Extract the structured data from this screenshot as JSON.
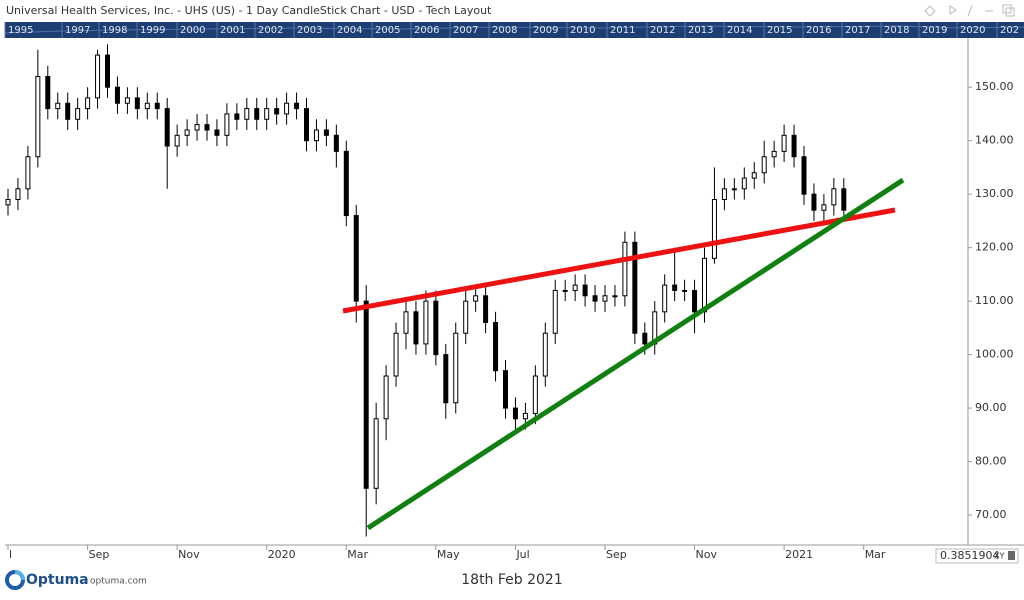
{
  "header": {
    "title": "Universal Health Services, Inc.  - UHS (US) - 1 Day CandleStick Chart - USD - Tech Layout"
  },
  "navigator": {
    "years": [
      "1995",
      "1997",
      "1998",
      "1999",
      "2000",
      "2001",
      "2002",
      "2003",
      "2004",
      "2005",
      "2006",
      "2007",
      "2008",
      "2009",
      "2010",
      "2011",
      "2012",
      "2013",
      "2014",
      "2015",
      "2016",
      "2017",
      "2018",
      "2019",
      "2020",
      "202"
    ]
  },
  "toolbar": {
    "cursor_value": "0.3851904",
    "xy": "XY"
  },
  "footer": {
    "brand": "Optuma",
    "site": "optuma.com",
    "date": "18th Feb 2021"
  },
  "chart_data": {
    "type": "candlestick",
    "color": "#000000",
    "categories": [
      "l",
      null,
      null,
      null,
      null,
      null,
      null,
      null,
      "Sep",
      null,
      null,
      null,
      null,
      null,
      null,
      null,
      null,
      "Nov",
      null,
      null,
      null,
      null,
      null,
      null,
      null,
      null,
      "2020",
      null,
      null,
      null,
      null,
      null,
      null,
      null,
      "Mar",
      null,
      null,
      null,
      null,
      null,
      null,
      null,
      null,
      "May",
      null,
      null,
      null,
      null,
      null,
      null,
      null,
      "Jul",
      null,
      null,
      null,
      null,
      null,
      null,
      null,
      null,
      "Sep",
      null,
      null,
      null,
      null,
      null,
      null,
      null,
      null,
      "Nov",
      null,
      null,
      null,
      null,
      null,
      null,
      null,
      null,
      "2021",
      null,
      null,
      null,
      null,
      null,
      null,
      null,
      "Mar",
      null,
      null,
      null,
      null,
      null,
      null,
      null,
      null,
      null,
      null
    ],
    "open": [
      128,
      129,
      131,
      137,
      152,
      146,
      147,
      144,
      146,
      148,
      156,
      150,
      147,
      148,
      146,
      147,
      146,
      139,
      141,
      142,
      143,
      142,
      141,
      145,
      144,
      146,
      144,
      146,
      145,
      147,
      146,
      140,
      142,
      141,
      138,
      126,
      110,
      75,
      88,
      96,
      104,
      108,
      102,
      110,
      100,
      91,
      104,
      110,
      111,
      106,
      97,
      90,
      88,
      89,
      96,
      104,
      112,
      112,
      113,
      111,
      110,
      111,
      111,
      121,
      104,
      102,
      108,
      113,
      112,
      112,
      108,
      118,
      129,
      131,
      131,
      133,
      134,
      137,
      138,
      141,
      137,
      130,
      127,
      128,
      131,
      null,
      null,
      null,
      null,
      null,
      null,
      null,
      null,
      null,
      null,
      null,
      null
    ],
    "high": [
      131,
      133,
      139,
      157,
      154,
      149,
      149,
      148,
      150,
      157,
      158,
      152,
      150,
      150,
      149,
      149,
      148,
      143,
      144,
      145,
      145,
      144,
      147,
      147,
      148,
      148,
      148,
      148,
      149,
      149,
      148,
      144,
      144,
      143,
      140,
      128,
      113,
      91,
      98,
      106,
      110,
      110,
      112,
      112,
      102,
      106,
      112,
      113,
      113,
      108,
      99,
      92,
      91,
      98,
      106,
      114,
      114,
      115,
      115,
      113,
      113,
      113,
      123,
      123,
      106,
      110,
      115,
      120,
      114,
      114,
      120,
      135,
      133,
      133,
      135,
      136,
      140,
      140,
      143,
      143,
      139,
      132,
      130,
      133,
      133,
      null,
      null,
      null,
      null,
      null,
      null,
      null,
      null,
      null,
      null,
      null,
      null
    ],
    "low": [
      126,
      127,
      129,
      135,
      144,
      144,
      142,
      142,
      144,
      146,
      148,
      145,
      145,
      144,
      144,
      144,
      131,
      137,
      139,
      140,
      140,
      139,
      139,
      142,
      142,
      142,
      142,
      143,
      143,
      144,
      138,
      138,
      139,
      135,
      124,
      106,
      66,
      72,
      84,
      94,
      101,
      100,
      100,
      98,
      88,
      89,
      102,
      108,
      104,
      95,
      88,
      86,
      86,
      87,
      94,
      102,
      110,
      110,
      109,
      108,
      108,
      109,
      109,
      102,
      100,
      100,
      106,
      110,
      110,
      104,
      106,
      117,
      127,
      129,
      129,
      131,
      132,
      135,
      136,
      135,
      128,
      125,
      125,
      126,
      126,
      null,
      null,
      null,
      null,
      null,
      null,
      null,
      null,
      null,
      null,
      null,
      null
    ],
    "close": [
      129,
      131,
      137,
      152,
      146,
      147,
      144,
      146,
      148,
      156,
      150,
      147,
      148,
      146,
      147,
      146,
      139,
      141,
      142,
      143,
      142,
      141,
      145,
      144,
      146,
      144,
      146,
      145,
      147,
      146,
      140,
      142,
      141,
      138,
      126,
      110,
      75,
      88,
      96,
      104,
      108,
      102,
      110,
      100,
      91,
      104,
      110,
      111,
      106,
      97,
      90,
      88,
      89,
      96,
      104,
      112,
      112,
      113,
      111,
      110,
      111,
      111,
      121,
      104,
      102,
      108,
      113,
      112,
      112,
      108,
      118,
      129,
      131,
      131,
      133,
      134,
      137,
      138,
      141,
      137,
      130,
      127,
      128,
      131,
      127,
      null,
      null,
      null,
      null,
      null,
      null,
      null,
      null,
      null,
      null,
      null,
      null
    ],
    "ylim": [
      64.4,
      159.2
    ],
    "yticks": [
      {
        "value": 70,
        "label": "70.00"
      },
      {
        "value": 80,
        "label": "80.00"
      },
      {
        "value": 90,
        "label": "90.00"
      },
      {
        "value": 100,
        "label": "100.00"
      },
      {
        "value": 110,
        "label": "110.00"
      },
      {
        "value": 120,
        "label": "120.00"
      },
      {
        "value": 130,
        "label": "130.00"
      },
      {
        "value": 140,
        "label": "140.00"
      },
      {
        "value": 150,
        "label": "150.00"
      }
    ]
  }
}
